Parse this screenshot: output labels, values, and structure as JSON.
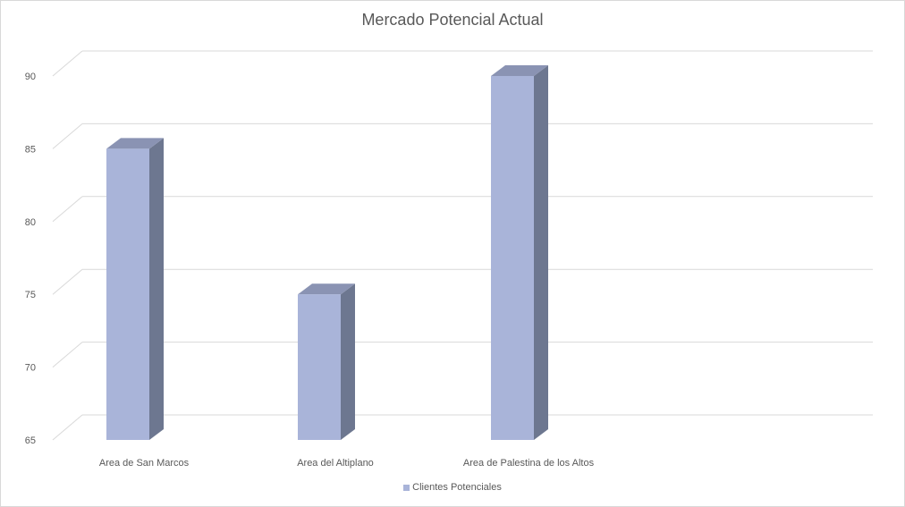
{
  "chart_data": {
    "type": "bar",
    "title": "Mercado Potencial Actual",
    "categories": [
      "Area de San Marcos",
      "Area del Altiplano",
      "Area de Palestina de los Altos"
    ],
    "series": [
      {
        "name": "Clientes Potenciales",
        "values": [
          85,
          75,
          90
        ]
      }
    ],
    "xlabel": "",
    "ylabel": "",
    "ylim": [
      65,
      90
    ],
    "y_ticks": [
      "65",
      "70",
      "75",
      "80",
      "85",
      "90"
    ],
    "grid": true,
    "legend_position": "bottom",
    "bar_3d": true,
    "colors": {
      "bar_front": "#a9b4d9",
      "bar_side": "#6d7790",
      "bar_top": "#8a93b3",
      "grid": "#d9d9d9"
    }
  }
}
